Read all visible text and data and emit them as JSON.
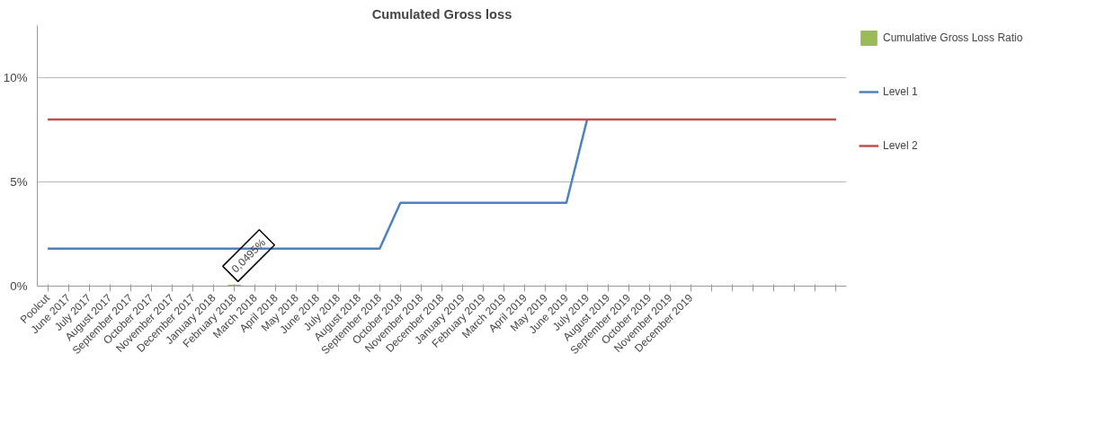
{
  "chart_data": {
    "type": "line",
    "title": "Cumulated Gross loss",
    "categories": [
      "Poolcut",
      "June 2017",
      "July 2017",
      "August 2017",
      "September 2017",
      "October 2017",
      "November 2017",
      "December 2017",
      "January 2018",
      "February 2018",
      "March 2018",
      "April 2018",
      "May 2018",
      "June 2018",
      "July 2018",
      "August 2018",
      "September 2018",
      "October 2018",
      "November 2018",
      "December 2018",
      "January 2019",
      "February 2019",
      "March 2019",
      "April 2019",
      "May 2019",
      "June 2019",
      "July 2019",
      "August 2019",
      "September 2019",
      "October 2019",
      "November 2019",
      "December 2019",
      null,
      null,
      null,
      null,
      null,
      null,
      null
    ],
    "series": [
      {
        "name": "Cumulative Gross Loss Ratio",
        "type": "bar",
        "color": "#9bbb59",
        "values": [
          null,
          null,
          null,
          null,
          null,
          null,
          null,
          null,
          null,
          0.0495,
          null,
          null,
          null,
          null,
          null,
          null,
          null,
          null,
          null,
          null,
          null,
          null,
          null,
          null,
          null,
          null,
          null,
          null,
          null,
          null,
          null,
          null,
          null,
          null,
          null,
          null,
          null,
          null,
          null
        ],
        "value_labels": [
          null,
          null,
          null,
          null,
          null,
          null,
          null,
          null,
          null,
          "0,0495%",
          null,
          null,
          null,
          null,
          null,
          null,
          null,
          null,
          null,
          null,
          null,
          null,
          null,
          null,
          null,
          null,
          null,
          null,
          null,
          null,
          null,
          null,
          null,
          null,
          null,
          null,
          null,
          null,
          null
        ]
      },
      {
        "name": "Level 1",
        "color": "#4f81bd",
        "values": [
          1.8,
          1.8,
          1.8,
          1.8,
          1.8,
          1.8,
          1.8,
          1.8,
          1.8,
          1.8,
          1.8,
          1.8,
          1.8,
          1.8,
          1.8,
          1.8,
          1.8,
          4,
          4,
          4,
          4,
          4,
          4,
          4,
          4,
          4,
          8,
          null,
          null,
          null,
          null,
          null,
          null,
          null,
          null,
          null,
          null,
          null,
          null
        ]
      },
      {
        "name": "Level 2",
        "color": "#c0504d",
        "values": [
          8,
          8,
          8,
          8,
          8,
          8,
          8,
          8,
          8,
          8,
          8,
          8,
          8,
          8,
          8,
          8,
          8,
          8,
          8,
          8,
          8,
          8,
          8,
          8,
          8,
          8,
          8,
          8,
          8,
          8,
          8,
          8,
          8,
          8,
          8,
          8,
          8,
          8,
          8
        ]
      }
    ],
    "ylim": [
      0,
      12.5
    ],
    "yticks": [
      {
        "value": 0,
        "label": "0%"
      },
      {
        "value": 5,
        "label": "5%"
      },
      {
        "value": 10,
        "label": "10%"
      }
    ],
    "grid": "y",
    "legend": "right"
  }
}
